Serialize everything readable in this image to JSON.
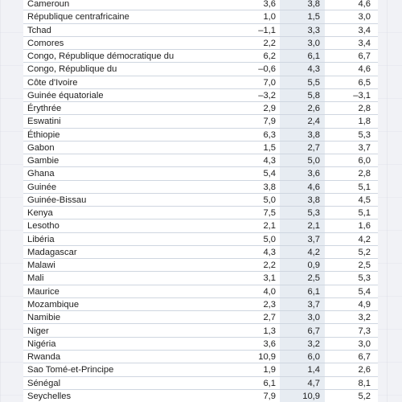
{
  "rows": [
    {
      "name": "Cameroun",
      "v": [
        "3,6",
        "3,8",
        "4,6"
      ]
    },
    {
      "name": "République centrafricaine",
      "v": [
        "1,0",
        "1,5",
        "3,0"
      ]
    },
    {
      "name": "Tchad",
      "v": [
        "–1,1",
        "3,3",
        "3,4"
      ]
    },
    {
      "name": "Comores",
      "v": [
        "2,2",
        "3,0",
        "3,4"
      ]
    },
    {
      "name": "Congo, République démocratique du",
      "v": [
        "6,2",
        "6,1",
        "6,7"
      ]
    },
    {
      "name": "Congo, République du",
      "v": [
        "–0,6",
        "4,3",
        "4,6"
      ]
    },
    {
      "name": "Côte d'Ivoire",
      "v": [
        "7,0",
        "5,5",
        "6,5"
      ]
    },
    {
      "name": "Guinée équatoriale",
      "v": [
        "–3,2",
        "5,8",
        "–3,1"
      ]
    },
    {
      "name": "Érythrée",
      "v": [
        "2,9",
        "2,6",
        "2,8"
      ]
    },
    {
      "name": "Eswatini",
      "v": [
        "7,9",
        "2,4",
        "1,8"
      ]
    },
    {
      "name": "Éthiopie",
      "v": [
        "6,3",
        "3,8",
        "5,3"
      ]
    },
    {
      "name": "Gabon",
      "v": [
        "1,5",
        "2,7",
        "3,7"
      ]
    },
    {
      "name": "Gambie",
      "v": [
        "4,3",
        "5,0",
        "6,0"
      ]
    },
    {
      "name": "Ghana",
      "v": [
        "5,4",
        "3,6",
        "2,8"
      ]
    },
    {
      "name": "Guinée",
      "v": [
        "3,8",
        "4,6",
        "5,1"
      ]
    },
    {
      "name": "Guinée-Bissau",
      "v": [
        "5,0",
        "3,8",
        "4,5"
      ]
    },
    {
      "name": "Kenya",
      "v": [
        "7,5",
        "5,3",
        "5,1"
      ]
    },
    {
      "name": "Lesotho",
      "v": [
        "2,1",
        "2,1",
        "1,6"
      ]
    },
    {
      "name": "Libéria",
      "v": [
        "5,0",
        "3,7",
        "4,2"
      ]
    },
    {
      "name": "Madagascar",
      "v": [
        "4,3",
        "4,2",
        "5,2"
      ]
    },
    {
      "name": "Malawi",
      "v": [
        "2,2",
        "0,9",
        "2,5"
      ]
    },
    {
      "name": "Mali",
      "v": [
        "3,1",
        "2,5",
        "5,3"
      ]
    },
    {
      "name": "Maurice",
      "v": [
        "4,0",
        "6,1",
        "5,4"
      ]
    },
    {
      "name": "Mozambique",
      "v": [
        "2,3",
        "3,7",
        "4,9"
      ]
    },
    {
      "name": "Namibie",
      "v": [
        "2,7",
        "3,0",
        "3,2"
      ]
    },
    {
      "name": "Niger",
      "v": [
        "1,3",
        "6,7",
        "7,3"
      ]
    },
    {
      "name": "Nigéria",
      "v": [
        "3,6",
        "3,2",
        "3,0"
      ]
    },
    {
      "name": "Rwanda",
      "v": [
        "10,9",
        "6,0",
        "6,7"
      ]
    },
    {
      "name": "Sao Tomé-et-Principe",
      "v": [
        "1,9",
        "1,4",
        "2,6"
      ]
    },
    {
      "name": "Sénégal",
      "v": [
        "6,1",
        "4,7",
        "8,1"
      ]
    },
    {
      "name": "Seychelles",
      "v": [
        "7,9",
        "10,9",
        "5,2"
      ]
    }
  ]
}
